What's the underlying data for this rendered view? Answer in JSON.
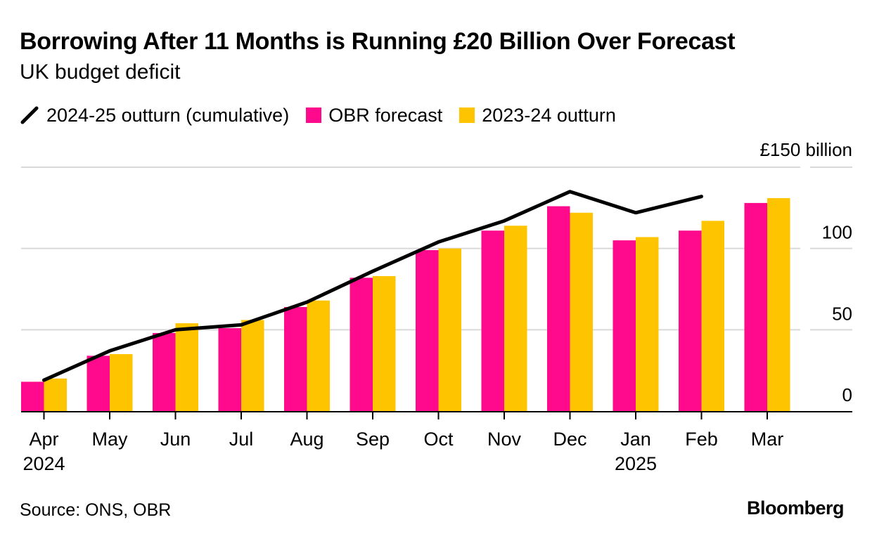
{
  "chart_data": {
    "type": "bar",
    "title": "Borrowing After 11 Months is Running £20 Billion Over Forecast",
    "subtitle": "UK budget deficit",
    "categories": [
      "Apr",
      "May",
      "Jun",
      "Jul",
      "Aug",
      "Sep",
      "Oct",
      "Nov",
      "Dec",
      "Jan",
      "Feb",
      "Mar"
    ],
    "year_labels": [
      "2024",
      "",
      "",
      "",
      "",
      "",
      "",
      "",
      "",
      "2025",
      "",
      ""
    ],
    "series": [
      {
        "name": "OBR forecast",
        "kind": "bar",
        "color": "#ff0a8c",
        "values": [
          18,
          34,
          48,
          51,
          64,
          82,
          99,
          111,
          126,
          105,
          111,
          128
        ]
      },
      {
        "name": "2023-24 outturn",
        "kind": "bar",
        "color": "#ffc400",
        "values": [
          20,
          35,
          54,
          56,
          68,
          83,
          100,
          114,
          122,
          107,
          117,
          131
        ]
      },
      {
        "name": "2024-25 outturn (cumulative)",
        "kind": "line",
        "color": "#000000",
        "values": [
          19,
          37,
          50,
          53,
          67,
          86,
          104,
          117,
          135,
          122,
          132,
          null
        ]
      }
    ],
    "ylim": [
      0,
      150
    ],
    "yticks": [
      0,
      50,
      100,
      150
    ],
    "ytick_labels": [
      "0",
      "50",
      "100",
      "£150 billion"
    ],
    "xlabel": "",
    "ylabel": "",
    "grid": true,
    "legend_position": "top-left"
  },
  "legend": [
    {
      "label": "2024-25 outturn (cumulative)",
      "swatch": "line",
      "color": "#000000"
    },
    {
      "label": "OBR forecast",
      "swatch": "box",
      "color": "#ff0a8c"
    },
    {
      "label": "2023-24 outturn",
      "swatch": "box",
      "color": "#ffc400"
    }
  ],
  "footer": {
    "source": "Source: ONS, OBR",
    "brand": "Bloomberg"
  }
}
